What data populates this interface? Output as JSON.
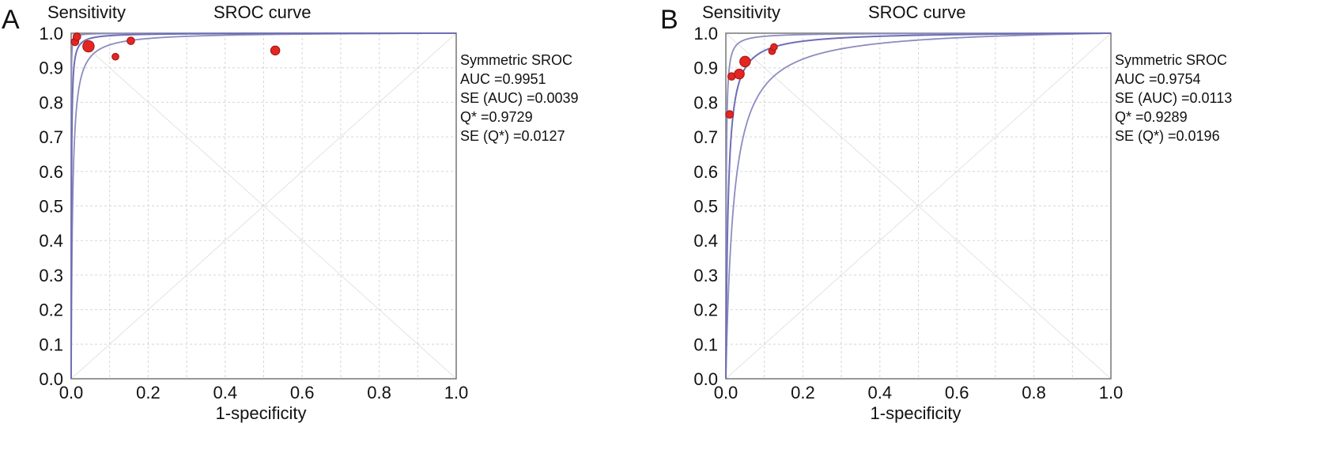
{
  "colors": {
    "point": "#e32622",
    "curve": "#6e6eb5",
    "frame": "#7f7f7f"
  },
  "chart_data": [
    {
      "panel": "A",
      "type": "scatter",
      "title": "SROC curve",
      "ylabel": "Sensitivity",
      "xlabel": "1-specificity",
      "xlim": [
        0,
        1
      ],
      "ylim": [
        0,
        1
      ],
      "xticks": [
        "0.0",
        "0.2",
        "0.4",
        "0.6",
        "0.8",
        "1.0"
      ],
      "yticks": [
        "0.0",
        "0.1",
        "0.2",
        "0.3",
        "0.4",
        "0.5",
        "0.6",
        "0.7",
        "0.8",
        "0.9",
        "1.0"
      ],
      "grid": true,
      "stats": [
        "Symmetric SROC",
        "AUC =0.9951",
        "SE (AUC) =0.0039",
        "Q* =0.9729",
        "SE (Q*) =0.0127"
      ],
      "curve_params": {
        "sroc_D": 7.14,
        "lower_D": 5.55,
        "upper_D": 9.0
      },
      "points": [
        {
          "x": 0.01,
          "y": 0.975,
          "size": 1.0
        },
        {
          "x": 0.015,
          "y": 0.99,
          "size": 1.0
        },
        {
          "x": 0.045,
          "y": 0.962,
          "size": 1.5
        },
        {
          "x": 0.115,
          "y": 0.932,
          "size": 0.9
        },
        {
          "x": 0.155,
          "y": 0.978,
          "size": 1.0
        },
        {
          "x": 0.53,
          "y": 0.95,
          "size": 1.2
        }
      ]
    },
    {
      "panel": "B",
      "type": "scatter",
      "title": "SROC curve",
      "ylabel": "Sensitivity",
      "xlabel": "1-specificity",
      "xlim": [
        0,
        1
      ],
      "ylim": [
        0,
        1
      ],
      "xticks": [
        "0.0",
        "0.2",
        "0.4",
        "0.6",
        "0.8",
        "1.0"
      ],
      "yticks": [
        "0.0",
        "0.1",
        "0.2",
        "0.3",
        "0.4",
        "0.5",
        "0.6",
        "0.7",
        "0.8",
        "0.9",
        "1.0"
      ],
      "grid": true,
      "stats": [
        "Symmetric SROC",
        "AUC =0.9754",
        "SE (AUC) =0.0113",
        "Q* =0.9289",
        "SE (Q*) =0.0196"
      ],
      "curve_params": {
        "sroc_D": 5.13,
        "lower_D": 3.9,
        "upper_D": 6.9
      },
      "points": [
        {
          "x": 0.01,
          "y": 0.765,
          "size": 1.0
        },
        {
          "x": 0.015,
          "y": 0.875,
          "size": 1.0
        },
        {
          "x": 0.035,
          "y": 0.882,
          "size": 1.3
        },
        {
          "x": 0.05,
          "y": 0.918,
          "size": 1.4
        },
        {
          "x": 0.12,
          "y": 0.948,
          "size": 0.9
        },
        {
          "x": 0.125,
          "y": 0.96,
          "size": 0.9
        }
      ]
    }
  ]
}
